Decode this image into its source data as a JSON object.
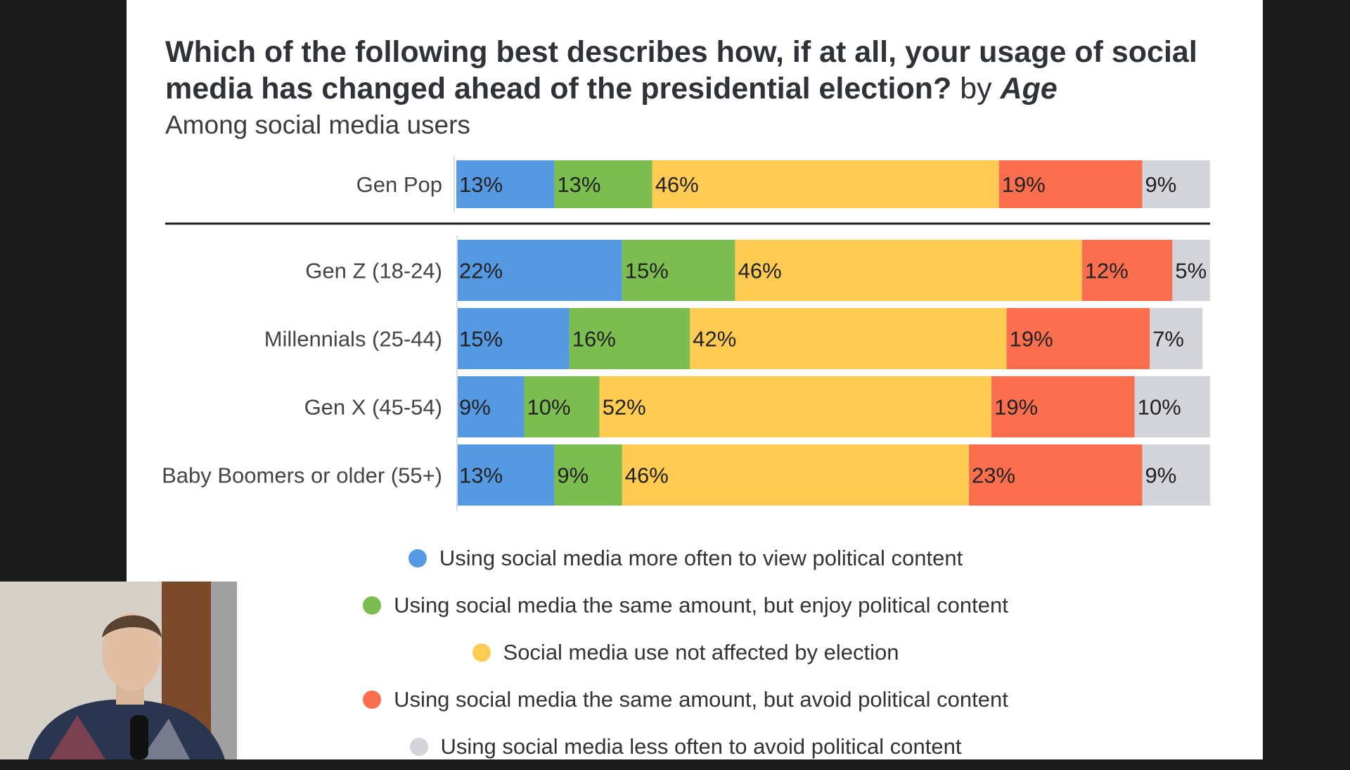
{
  "title": {
    "main": "Which of the following best describes how, if at all, your usage of social media has changed ahead of the presidential election?",
    "by_prefix": "by",
    "by_term": "Age",
    "subtitle": "Among social media users"
  },
  "chart_data": {
    "type": "bar",
    "orientation": "horizontal",
    "stacked": true,
    "title": "Which of the following best describes how, if at all, your usage of social media has changed ahead of the presidential election? by Age",
    "subtitle": "Among social media users",
    "xlabel": "",
    "ylabel": "",
    "xlim": [
      0,
      100
    ],
    "value_suffix": "%",
    "legend_position": "bottom",
    "categories": [
      "Gen Pop",
      "Gen Z (18-24)",
      "Millennials (25-44)",
      "Gen X (45-54)",
      "Baby Boomers or older (55+)"
    ],
    "series": [
      {
        "name": "Using social media more often to view political content",
        "color": "#5599e3",
        "values": [
          13,
          22,
          15,
          9,
          13
        ]
      },
      {
        "name": "Using social media the same amount, but enjoy political content",
        "color": "#7bbd4f",
        "values": [
          13,
          15,
          16,
          10,
          9
        ]
      },
      {
        "name": "Social media use not affected by election",
        "color": "#ffcb52",
        "values": [
          46,
          46,
          42,
          52,
          46
        ]
      },
      {
        "name": "Using social media the same amount, but avoid political content",
        "color": "#fb6f4f",
        "values": [
          19,
          12,
          19,
          19,
          23
        ]
      },
      {
        "name": "Using social media less often to avoid political content",
        "color": "#d4d5da",
        "values": [
          9,
          5,
          7,
          10,
          9
        ]
      }
    ]
  },
  "webcam": {
    "icon": "person-webcam-icon"
  }
}
